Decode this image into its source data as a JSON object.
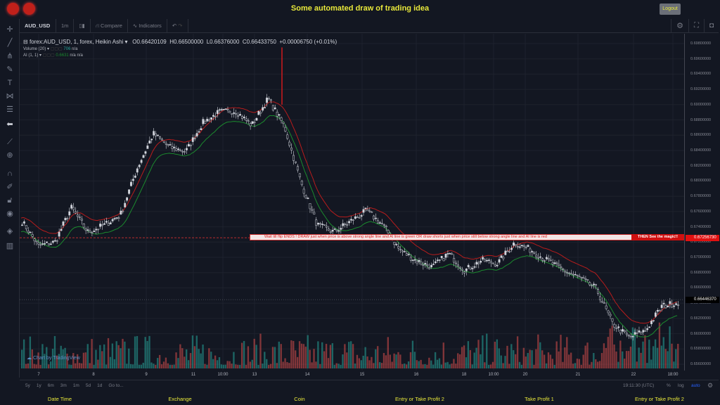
{
  "header": {
    "title": "Some automated draw of trading idea",
    "logout_label": "Logout",
    "logo_icons": [
      "red-logo-icon",
      "red-logo-icon"
    ]
  },
  "toolbar": {
    "symbol": "AUD_USD",
    "interval": "1m",
    "compare": "Compare",
    "indicators": "Indicators",
    "right_icons": [
      "settings-icon",
      "fullscreen-icon",
      "camera-icon"
    ]
  },
  "left_tools": [
    "crosshair-icon",
    "trend-line-icon",
    "fork-icon",
    "brush-icon",
    "text-icon",
    "pattern-icon",
    "prediction-icon",
    "back-arrow-icon",
    "ruler-icon",
    "zoom-in-icon",
    "magnet-icon",
    "lock-pencil-icon",
    "unlock-icon",
    "eye-icon",
    "layers-icon",
    "trash-icon"
  ],
  "legend": {
    "series": "forex:AUD_USD, 1, forex, Heikin Ashi",
    "open": "O0.66420109",
    "high": "H0.66500000",
    "low": "L0.66376000",
    "close": "C0.66433750",
    "change": "+0.00006750 (+0.01%)",
    "volume_label": "Volume (20)",
    "volume_value": "706",
    "volume_na": "n/a",
    "ai_label": "AI (1, 1)",
    "ai_value": "0.6631",
    "ai_na1": "n/a",
    "ai_na2": "n/a"
  },
  "annotation": {
    "text": "Wait till flip ENDS  !    DRAW just when  price is above strong angle line and AI line is green          OR          draw shorts just when price still below strong angle line and AI line is red",
    "magic": "THEN See the magic!!"
  },
  "watermark": "Chart by TradingView",
  "chart_data": {
    "type": "candlestick",
    "chart_style": "Heikin Ashi",
    "price_axis": [
      "0.69800000",
      "0.69600000",
      "0.69400000",
      "0.69200000",
      "0.69000000",
      "0.68800000",
      "0.68600000",
      "0.68400000",
      "0.68200000",
      "0.68000000",
      "0.67800000",
      "0.67600000",
      "0.67400000",
      "0.67200000",
      "0.67000000",
      "0.66800000",
      "0.66600000",
      "0.66400000",
      "0.66200000",
      "0.66000000",
      "0.65800000",
      "0.65600000"
    ],
    "ylim": [
      0.656,
      0.698
    ],
    "x_ticks": [
      "7",
      "8",
      "9",
      "11",
      "10:00",
      "13",
      "14",
      "15",
      "16",
      "18",
      "10:00",
      "20",
      "21",
      "22",
      "18:00"
    ],
    "approx_close_path": [
      0.6747,
      0.6715,
      0.672,
      0.6765,
      0.6733,
      0.6742,
      0.6756,
      0.6816,
      0.6862,
      0.6844,
      0.6839,
      0.6876,
      0.689,
      0.6892,
      0.6873,
      0.6908,
      0.6871,
      0.6798,
      0.6742,
      0.6733,
      0.6747,
      0.6761,
      0.6742,
      0.671,
      0.6696,
      0.6687,
      0.6705,
      0.6683,
      0.6696,
      0.6692,
      0.6719,
      0.671,
      0.6696,
      0.6683,
      0.6673,
      0.6659,
      0.6613,
      0.6595,
      0.6604,
      0.6636,
      0.6641
    ],
    "horizontal_line": "0.67256730",
    "last_price": "0.66446370",
    "colors": {
      "up": "#26a69a",
      "down": "#ef5350",
      "ha_body": "#d1d4dc",
      "upper_line": "#b71c1c",
      "lower_line": "#1b8a2e",
      "marker": "#ff1a1a"
    }
  },
  "time_range_buttons": [
    "5y",
    "1y",
    "6m",
    "3m",
    "1m",
    "5d",
    "1d",
    "Go to..."
  ],
  "status": {
    "clock": "19:11:30 (UTC)",
    "percent": "%",
    "log": "log",
    "auto": "auto"
  },
  "footer": [
    "Date Time",
    "Exchange",
    "Coin",
    "Entry or Take Profit 2",
    "Take Profit 1",
    "Entry or Take Profit 2"
  ]
}
